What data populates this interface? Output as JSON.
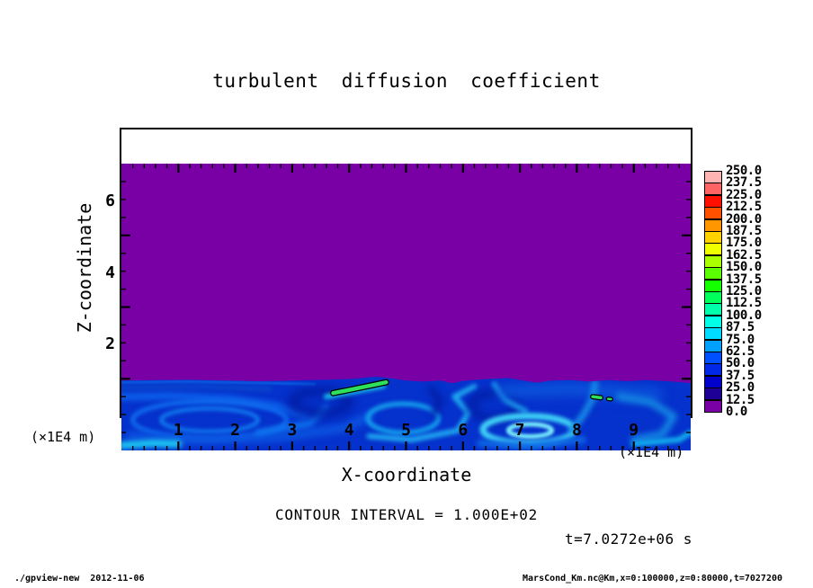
{
  "footer": {
    "left": "./gpview-new  2012-11-06",
    "right": "MarsCond_Km.nc@Km,x=0:100000,z=0:80000,t=7027200"
  },
  "chart_data": {
    "type": "heatmap",
    "title": "turbulent diffusion coefficient",
    "xlabel": "X-coordinate",
    "ylabel": "Z-coordinate",
    "x_unit_label": "(×1E4 m)",
    "z_unit_label": "(×1E4 m)",
    "contour_interval_label": "CONTOUR INTERVAL = 1.000E+02",
    "time_label": "t=7.0272e+06 s",
    "xlim": [
      0,
      10
    ],
    "ylim": [
      0,
      8
    ],
    "x_ticks": [
      1,
      2,
      3,
      4,
      5,
      6,
      7,
      8,
      9
    ],
    "x_minor_step": 0.2,
    "y_ticks": [
      2,
      4,
      6
    ],
    "y_minor_step": 0.5,
    "levels": [
      0.0,
      12.5,
      25.0,
      37.5,
      50.0,
      62.5,
      75.0,
      87.5,
      100.0,
      112.5,
      125.0,
      137.5,
      150.0,
      162.5,
      175.0,
      187.5,
      200.0,
      212.5,
      225.0,
      237.5,
      250.0
    ],
    "colorbar": {
      "colors_bottom_to_top": [
        "#7800a5",
        "#1e0096",
        "#0000cd",
        "#0028e6",
        "#0050ff",
        "#00a0ff",
        "#00dcff",
        "#00ffe6",
        "#00ffaa",
        "#00ff5a",
        "#14ff00",
        "#5aff00",
        "#aaff00",
        "#f0ff00",
        "#ffd200",
        "#ff9600",
        "#ff5000",
        "#ff0f00",
        "#ff6464",
        "#ffb4b4"
      ]
    },
    "regions": [
      {
        "area": "z above ~2 (x1E4 m), all x",
        "value_range": "0-12.5",
        "appearance": "uniform purple"
      },
      {
        "area": "z below ~2, all x",
        "value_range": "mostly 12.5-100",
        "appearance": "turbulent blue and cyan eddies"
      },
      {
        "area": "x~3.7-4.7, z~1.6-1.9",
        "value_range": "~100-150",
        "appearance": "green streak outlined by black contour (interval 100)"
      },
      {
        "area": "x~8.3-8.6, z~1.45-1.55",
        "value_range": "~100-150",
        "appearance": "small green spots with black contour"
      }
    ],
    "field": {
      "background_color": "#7800a5",
      "band": {
        "base_color": "#0531cc",
        "z_top_profile": [
          [
            0,
            1.95
          ],
          [
            0.6,
            1.96
          ],
          [
            1.2,
            1.97
          ],
          [
            1.8,
            1.95
          ],
          [
            2.4,
            1.93
          ],
          [
            3.0,
            1.95
          ],
          [
            3.6,
            1.97
          ],
          [
            4.1,
            2.0
          ],
          [
            4.45,
            2.06
          ],
          [
            4.7,
            2.02
          ],
          [
            5.0,
            1.95
          ],
          [
            5.3,
            1.92
          ],
          [
            5.6,
            1.95
          ],
          [
            5.8,
            1.87
          ],
          [
            6.0,
            1.94
          ],
          [
            6.4,
            1.99
          ],
          [
            6.8,
            2.02
          ],
          [
            7.05,
            1.95
          ],
          [
            7.3,
            1.89
          ],
          [
            7.55,
            1.95
          ],
          [
            7.9,
            1.96
          ],
          [
            8.2,
            1.92
          ],
          [
            8.55,
            1.96
          ],
          [
            8.9,
            1.93
          ],
          [
            9.2,
            1.96
          ],
          [
            9.6,
            1.93
          ],
          [
            10,
            1.88
          ]
        ],
        "wisps": [
          {
            "p": [
              [
                0,
                1.5
              ],
              [
                0.9,
                1.52
              ],
              [
                1.9,
                1.44
              ],
              [
                2.7,
                1.25
              ],
              [
                3.25,
                0.95
              ]
            ],
            "c": "#0c5ce8",
            "w": 9,
            "b": 3
          },
          {
            "e": [
              1.55,
              0.85,
              1.35,
              0.52
            ],
            "c": "#0f6cee",
            "w": 5,
            "b": 2
          },
          {
            "e": [
              1.55,
              0.85,
              0.85,
              0.32
            ],
            "c": "#1282f2",
            "w": 4,
            "b": 2
          },
          {
            "p": [
              [
                0.15,
                0.4
              ],
              [
                1.4,
                0.28
              ],
              [
                2.8,
                0.38
              ],
              [
                3.9,
                0.62
              ],
              [
                4.35,
                0.95
              ]
            ],
            "c": "#0b54e0",
            "w": 10,
            "b": 4
          },
          {
            "p": [
              [
                0,
                0.14
              ],
              [
                0.55,
                0.2
              ],
              [
                1.0,
                0.18
              ]
            ],
            "c": "#1ecdf2",
            "w": 8,
            "b": 3
          },
          {
            "p": [
              [
                0,
                1.75
              ],
              [
                1.3,
                1.78
              ],
              [
                2.6,
                1.72
              ]
            ],
            "c": "#0a44cc",
            "w": 6,
            "b": 2.5
          },
          {
            "p": [
              [
                0,
                1.9
              ],
              [
                1.2,
                1.92
              ],
              [
                2.6,
                1.88
              ],
              [
                3.4,
                1.85
              ]
            ],
            "c": "#0c62e2",
            "w": 2.5,
            "b": 1
          },
          {
            "p": [
              [
                2.4,
                0.5
              ],
              [
                3.3,
                0.75
              ],
              [
                3.6,
                1.2
              ]
            ],
            "c": "#0e74ee",
            "w": 7,
            "b": 3
          },
          {
            "e": [
              3.5,
              1.35,
              0.5,
              0.3
            ],
            "c": "#021ea6",
            "w": 10,
            "b": 5
          },
          {
            "p": [
              [
                3.6,
                1.5
              ],
              [
                4.1,
                1.65
              ],
              [
                4.6,
                1.8
              ]
            ],
            "c": "#18b8e8",
            "w": 6,
            "b": 2
          },
          {
            "e": [
              4.95,
              0.9,
              0.62,
              0.4
            ],
            "c": "#14a4ee",
            "w": 5,
            "b": 2
          },
          {
            "p": [
              [
                4.35,
                0.4
              ],
              [
                5.1,
                0.3
              ],
              [
                5.9,
                0.55
              ],
              [
                6.1,
                1.05
              ],
              [
                5.85,
                1.5
              ],
              [
                6.2,
                1.78
              ]
            ],
            "c": "#1faaf0",
            "w": 6,
            "b": 2.5
          },
          {
            "p": [
              [
                5.45,
                1.7
              ],
              [
                5.6,
                1.35
              ],
              [
                5.5,
                1.05
              ]
            ],
            "c": "#0220aa",
            "w": 9,
            "b": 4
          },
          {
            "e": [
              6.55,
              1.25,
              0.4,
              0.35
            ],
            "c": "#021ea6",
            "w": 9,
            "b": 5
          },
          {
            "p": [
              [
                6.55,
                1.85
              ],
              [
                6.75,
                1.4
              ],
              [
                7.1,
                1.1
              ]
            ],
            "c": "#1b96ea",
            "w": 6,
            "b": 2.5
          },
          {
            "e": [
              7.15,
              0.58,
              0.8,
              0.38
            ],
            "c": "#3fd4f6",
            "w": 7,
            "b": 2
          },
          {
            "e": [
              7.18,
              0.56,
              0.38,
              0.17
            ],
            "c": "#79eefb",
            "w": 5,
            "b": 1.5
          },
          {
            "p": [
              [
                6.3,
                0.2
              ],
              [
                7.2,
                0.12
              ],
              [
                8.1,
                0.3
              ]
            ],
            "c": "#0e66e4",
            "w": 8,
            "b": 3
          },
          {
            "p": [
              [
                6.7,
                1.65
              ],
              [
                7.9,
                1.72
              ],
              [
                9.4,
                1.55
              ]
            ],
            "c": "#0c55dc",
            "w": 14,
            "b": 6
          },
          {
            "p": [
              [
                8.32,
                1.88
              ],
              [
                8.28,
                1.45
              ],
              [
                8.1,
                0.95
              ],
              [
                7.9,
                0.55
              ]
            ],
            "c": "#178ce6",
            "w": 7,
            "b": 3
          },
          {
            "p": [
              [
                8.75,
                1.5
              ],
              [
                9.3,
                1.35
              ],
              [
                9.7,
                0.95
              ],
              [
                9.5,
                0.45
              ],
              [
                9.0,
                0.3
              ]
            ],
            "c": "#1487e2",
            "w": 8,
            "b": 3.5
          },
          {
            "p": [
              [
                9.0,
                0.18
              ],
              [
                9.8,
                0.3
              ],
              [
                10,
                0.5
              ]
            ],
            "c": "#12b4ee",
            "w": 6,
            "b": 2.5
          }
        ],
        "green_patches": [
          {
            "p": [
              [
                3.72,
                1.6
              ],
              [
                3.98,
                1.68
              ],
              [
                4.25,
                1.77
              ],
              [
                4.5,
                1.85
              ],
              [
                4.65,
                1.9
              ]
            ],
            "c": "#2fe05c",
            "w": 4.5,
            "outline": "#000000"
          },
          {
            "p": [
              [
                8.28,
                1.5
              ],
              [
                8.42,
                1.47
              ]
            ],
            "c": "#2fe05c",
            "w": 3.5,
            "outline": "#000000"
          },
          {
            "p": [
              [
                8.55,
                1.44
              ],
              [
                8.6,
                1.43
              ]
            ],
            "c": "#2fe05c",
            "w": 2.5,
            "outline": "#000000"
          }
        ]
      }
    }
  }
}
